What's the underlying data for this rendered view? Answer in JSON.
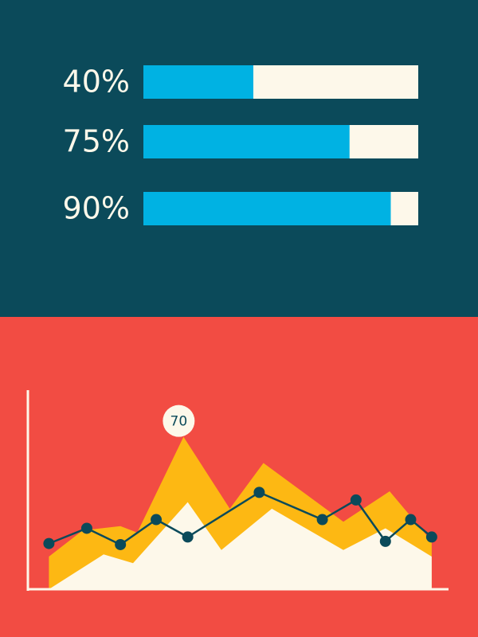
{
  "chart_data": [
    {
      "type": "bar",
      "values": [
        40,
        75,
        90
      ],
      "value_labels": [
        "40%",
        "75%",
        "90%"
      ],
      "xlim": [
        0,
        100
      ],
      "color": "#00b2e3",
      "track_color": "#fdf8ea",
      "background": "#0b4a5a"
    },
    {
      "type": "area",
      "background": "#f24c43",
      "xlim": [
        0,
        100
      ],
      "ylim": [
        0,
        90
      ],
      "series": [
        {
          "type": "area",
          "color": "#fdb813",
          "x": [
            5,
            13,
            22,
            26,
            37,
            48,
            56,
            75,
            86,
            96
          ],
          "values": [
            15,
            27,
            29,
            26,
            70,
            37,
            58,
            31,
            45,
            22
          ]
        },
        {
          "type": "area",
          "color": "#fdf8ea",
          "x": [
            5,
            18,
            25,
            38,
            46,
            58,
            75,
            85,
            96
          ],
          "values": [
            0,
            16,
            12,
            40,
            18,
            37,
            18,
            28,
            15
          ]
        },
        {
          "type": "line",
          "color": "#0b4a5a",
          "x": [
            5,
            14,
            22,
            30.5,
            38,
            55,
            70,
            78,
            85,
            91,
            96
          ],
          "values": [
            21,
            28,
            20.5,
            32,
            24,
            44.5,
            32,
            41,
            22,
            32,
            24
          ]
        }
      ]
    }
  ]
}
